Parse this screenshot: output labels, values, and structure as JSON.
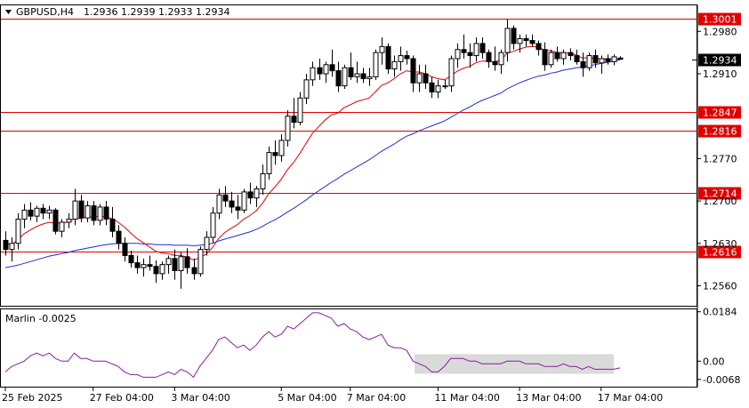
{
  "header": {
    "symbol_timeframe": "GBPUSD,H4",
    "quote": "1.2936 1.2939 1.2933 1.2934"
  },
  "indicator": {
    "label": "Marlin -0.0025"
  },
  "colors": {
    "candle_body_up": "#ffffff",
    "candle_body_down": "#000000",
    "candle_outline": "#000000",
    "level_line": "#e00000",
    "level_box": "#e00000",
    "ma_fast": "#e00000",
    "ma_slow": "#1f2fd0",
    "oscillator": "#8b1aa0",
    "shade": "#d6d6d6",
    "current_price_box": "#000000"
  },
  "chart_data": [
    {
      "type": "candlestick",
      "title": "GBPUSD,H4",
      "ylim": [
        1.2527,
        1.3023
      ],
      "y_ticks": [
        "1.2980",
        "1.2910",
        "1.2770",
        "1.2700",
        "1.2630",
        "1.2560"
      ],
      "x_ticks": [
        "25 Feb 2025",
        "27 Feb 04:00",
        "3 Mar 04:00",
        "5 Mar 04:00",
        "7 Mar 04:00",
        "11 Mar 04:00",
        "13 Mar 04:00",
        "17 Mar 04:00"
      ],
      "levels": [
        "1.3001",
        "1.2847",
        "1.2816",
        "1.2714",
        "1.2616"
      ],
      "current_price": "1.2934",
      "candles": [
        [
          1.2635,
          1.265,
          1.261,
          1.262
        ],
        [
          1.262,
          1.264,
          1.26,
          1.263
        ],
        [
          1.263,
          1.268,
          1.262,
          1.267
        ],
        [
          1.267,
          1.2695,
          1.2655,
          1.2685
        ],
        [
          1.2685,
          1.2698,
          1.2668,
          1.2675
        ],
        [
          1.2675,
          1.2692,
          1.2665,
          1.2688
        ],
        [
          1.2688,
          1.2695,
          1.267,
          1.268
        ],
        [
          1.268,
          1.2692,
          1.267,
          1.2685
        ],
        [
          1.2685,
          1.2688,
          1.2645,
          1.265
        ],
        [
          1.265,
          1.267,
          1.264,
          1.2665
        ],
        [
          1.2665,
          1.268,
          1.2655,
          1.267
        ],
        [
          1.267,
          1.272,
          1.266,
          1.27
        ],
        [
          1.27,
          1.271,
          1.2665,
          1.2672
        ],
        [
          1.2672,
          1.27,
          1.2665,
          1.2692
        ],
        [
          1.2692,
          1.27,
          1.266,
          1.2668
        ],
        [
          1.2668,
          1.2695,
          1.266,
          1.269
        ],
        [
          1.269,
          1.27,
          1.266,
          1.267
        ],
        [
          1.267,
          1.269,
          1.264,
          1.265
        ],
        [
          1.265,
          1.266,
          1.262,
          1.263
        ],
        [
          1.263,
          1.264,
          1.26,
          1.261
        ],
        [
          1.261,
          1.2618,
          1.259,
          1.2598
        ],
        [
          1.2598,
          1.261,
          1.258,
          1.259
        ],
        [
          1.259,
          1.2605,
          1.2575,
          1.2595
        ],
        [
          1.2595,
          1.261,
          1.2585,
          1.2592
        ],
        [
          1.2592,
          1.2602,
          1.2565,
          1.258
        ],
        [
          1.258,
          1.26,
          1.257,
          1.2595
        ],
        [
          1.2595,
          1.261,
          1.258,
          1.2605
        ],
        [
          1.2605,
          1.262,
          1.257,
          1.2585
        ],
        [
          1.2585,
          1.2615,
          1.2555,
          1.2608
        ],
        [
          1.2608,
          1.2622,
          1.258,
          1.259
        ],
        [
          1.259,
          1.2605,
          1.257,
          1.258
        ],
        [
          1.258,
          1.2625,
          1.2575,
          1.262
        ],
        [
          1.262,
          1.265,
          1.261,
          1.264
        ],
        [
          1.264,
          1.269,
          1.263,
          1.268
        ],
        [
          1.268,
          1.272,
          1.267,
          1.271
        ],
        [
          1.271,
          1.2725,
          1.269,
          1.27
        ],
        [
          1.27,
          1.2715,
          1.268,
          1.269
        ],
        [
          1.269,
          1.271,
          1.267,
          1.2685
        ],
        [
          1.2685,
          1.272,
          1.268,
          1.2715
        ],
        [
          1.2715,
          1.273,
          1.2695,
          1.2705
        ],
        [
          1.2705,
          1.2725,
          1.269,
          1.272
        ],
        [
          1.272,
          1.276,
          1.271,
          1.2745
        ],
        [
          1.2745,
          1.279,
          1.2735,
          1.278
        ],
        [
          1.278,
          1.28,
          1.276,
          1.2775
        ],
        [
          1.2775,
          1.281,
          1.2765,
          1.28
        ],
        [
          1.28,
          1.285,
          1.279,
          1.284
        ],
        [
          1.284,
          1.287,
          1.282,
          1.283
        ],
        [
          1.283,
          1.288,
          1.2825,
          1.287
        ],
        [
          1.287,
          1.291,
          1.286,
          1.29
        ],
        [
          1.29,
          1.293,
          1.289,
          1.292
        ],
        [
          1.292,
          1.2935,
          1.29,
          1.291
        ],
        [
          1.291,
          1.293,
          1.2895,
          1.2925
        ],
        [
          1.2925,
          1.295,
          1.2905,
          1.2915
        ],
        [
          1.2915,
          1.293,
          1.288,
          1.289
        ],
        [
          1.289,
          1.2925,
          1.2885,
          1.292
        ],
        [
          1.292,
          1.2945,
          1.29,
          1.2905
        ],
        [
          1.2905,
          1.293,
          1.2895,
          1.291
        ],
        [
          1.291,
          1.292,
          1.2895,
          1.2902
        ],
        [
          1.2902,
          1.292,
          1.289,
          1.2905
        ],
        [
          1.2905,
          1.295,
          1.29,
          1.2945
        ],
        [
          1.2945,
          1.297,
          1.2925,
          1.2955
        ],
        [
          1.2955,
          1.296,
          1.291,
          1.2918
        ],
        [
          1.2918,
          1.294,
          1.2905,
          1.293
        ],
        [
          1.293,
          1.2955,
          1.2915,
          1.294
        ],
        [
          1.294,
          1.2948,
          1.2925,
          1.2935
        ],
        [
          1.2935,
          1.294,
          1.288,
          1.2895
        ],
        [
          1.2895,
          1.2925,
          1.288,
          1.291
        ],
        [
          1.291,
          1.2925,
          1.2885,
          1.2895
        ],
        [
          1.2895,
          1.2905,
          1.287,
          1.288
        ],
        [
          1.288,
          1.29,
          1.287,
          1.289
        ],
        [
          1.289,
          1.29,
          1.2885,
          1.289
        ],
        [
          1.289,
          1.294,
          1.288,
          1.2935
        ],
        [
          1.2935,
          1.296,
          1.292,
          1.295
        ],
        [
          1.295,
          1.2975,
          1.2935,
          1.2945
        ],
        [
          1.2945,
          1.296,
          1.292,
          1.294
        ],
        [
          1.294,
          1.297,
          1.293,
          1.296
        ],
        [
          1.296,
          1.297,
          1.2935,
          1.2945
        ],
        [
          1.2945,
          1.295,
          1.292,
          1.293
        ],
        [
          1.293,
          1.2955,
          1.2915,
          1.2925
        ],
        [
          1.2925,
          1.295,
          1.291,
          1.2945
        ],
        [
          1.2945,
          1.3,
          1.293,
          1.2985
        ],
        [
          1.2985,
          1.299,
          1.295,
          1.296
        ],
        [
          1.296,
          1.2975,
          1.2945,
          1.2968
        ],
        [
          1.2968,
          1.2975,
          1.2955,
          1.2965
        ],
        [
          1.2965,
          1.2975,
          1.2955,
          1.296
        ],
        [
          1.296,
          1.2965,
          1.294,
          1.295
        ],
        [
          1.295,
          1.2962,
          1.2915,
          1.2925
        ],
        [
          1.2925,
          1.295,
          1.292,
          1.2945
        ],
        [
          1.2945,
          1.2955,
          1.293,
          1.2935
        ],
        [
          1.2935,
          1.295,
          1.2925,
          1.2945
        ],
        [
          1.2945,
          1.2952,
          1.2932,
          1.294
        ],
        [
          1.294,
          1.295,
          1.2925,
          1.293
        ],
        [
          1.293,
          1.2945,
          1.2905,
          1.292
        ],
        [
          1.292,
          1.2945,
          1.2915,
          1.294
        ],
        [
          1.294,
          1.295,
          1.292,
          1.2928
        ],
        [
          1.2928,
          1.294,
          1.291,
          1.2935
        ],
        [
          1.2935,
          1.2942,
          1.2925,
          1.293
        ],
        [
          1.293,
          1.2942,
          1.2924,
          1.2938
        ],
        [
          1.2936,
          1.2939,
          1.2933,
          1.2934
        ]
      ],
      "ma_fast": [
        1.263,
        1.2628,
        1.2636,
        1.2646,
        1.2652,
        1.2658,
        1.2662,
        1.2665,
        1.2663,
        1.2664,
        1.2665,
        1.2671,
        1.2671,
        1.2674,
        1.2673,
        1.2675,
        1.2674,
        1.2671,
        1.2665,
        1.2657,
        1.2647,
        1.2638,
        1.2631,
        1.2624,
        1.2617,
        1.2614,
        1.2613,
        1.261,
        1.261,
        1.2607,
        1.2603,
        1.2606,
        1.2612,
        1.2623,
        1.2638,
        1.2648,
        1.2655,
        1.2661,
        1.267,
        1.2676,
        1.2684,
        1.2696,
        1.2712,
        1.2723,
        1.2736,
        1.2752,
        1.2764,
        1.2779,
        1.2796,
        1.2812,
        1.2823,
        1.2834,
        1.2842,
        1.2845,
        1.2854,
        1.2859,
        1.2864,
        1.2867,
        1.287,
        1.288,
        1.2891,
        1.2895,
        1.2902,
        1.291,
        1.2915,
        1.2913,
        1.2913,
        1.291,
        1.2905,
        1.2902,
        1.29,
        1.2906,
        1.2914,
        1.2919,
        1.2922,
        1.2928,
        1.2931,
        1.2931,
        1.293,
        1.2932,
        1.2944,
        1.2947,
        1.2951,
        1.2954,
        1.2955,
        1.2954,
        1.2949,
        1.2948,
        1.2945,
        1.2945,
        1.2944,
        1.2941,
        1.2936,
        1.2937,
        1.2935,
        1.2935,
        1.2934,
        1.2935,
        1.2934
      ],
      "ma_slow": [
        1.259,
        1.2592,
        1.2594,
        1.2597,
        1.26,
        1.2603,
        1.2606,
        1.2609,
        1.2611,
        1.2613,
        1.2615,
        1.2618,
        1.262,
        1.2622,
        1.2624,
        1.2626,
        1.2628,
        1.2629,
        1.263,
        1.263,
        1.263,
        1.263,
        1.2629,
        1.2629,
        1.2628,
        1.2628,
        1.2628,
        1.2627,
        1.2627,
        1.2627,
        1.2626,
        1.2627,
        1.2628,
        1.263,
        1.2634,
        1.2637,
        1.264,
        1.2643,
        1.2646,
        1.2649,
        1.2653,
        1.2658,
        1.2664,
        1.2669,
        1.2675,
        1.2682,
        1.2688,
        1.2695,
        1.2702,
        1.271,
        1.2717,
        1.2724,
        1.2731,
        1.2737,
        1.2744,
        1.275,
        1.2756,
        1.2762,
        1.2768,
        1.2775,
        1.2782,
        1.2788,
        1.2794,
        1.2801,
        1.2807,
        1.2811,
        1.2816,
        1.282,
        1.2824,
        1.2828,
        1.2832,
        1.2838,
        1.2844,
        1.285,
        1.2855,
        1.2861,
        1.2866,
        1.287,
        1.2874,
        1.2878,
        1.2885,
        1.289,
        1.2895,
        1.2899,
        1.2903,
        1.2906,
        1.2908,
        1.2911,
        1.2913,
        1.2916,
        1.2918,
        1.292,
        1.2921,
        1.2923,
        1.2925,
        1.2927,
        1.2929,
        1.2931,
        1.2933
      ]
    },
    {
      "type": "line",
      "title": "Marlin -0.0025",
      "ylim": [
        -0.0095,
        0.0193
      ],
      "y_ticks": [
        "0.0184",
        "0.00",
        "-0.0068"
      ],
      "series": [
        {
          "values": [
            -0.004,
            -0.002,
            -0.001,
            0.0,
            0.002,
            0.003,
            0.002,
            0.003,
            0.001,
            0.0,
            0.0,
            0.003,
            0.001,
            0.001,
            0.0,
            0.0,
            0.0,
            -0.001,
            -0.002,
            -0.004,
            -0.005,
            -0.005,
            -0.006,
            -0.006,
            -0.006,
            -0.005,
            -0.004,
            -0.005,
            -0.003,
            -0.004,
            -0.006,
            -0.002,
            0.001,
            0.004,
            0.008,
            0.009,
            0.007,
            0.005,
            0.006,
            0.004,
            0.006,
            0.009,
            0.011,
            0.009,
            0.01,
            0.013,
            0.012,
            0.014,
            0.016,
            0.018,
            0.018,
            0.017,
            0.016,
            0.013,
            0.014,
            0.012,
            0.011,
            0.009,
            0.008,
            0.009,
            0.01,
            0.006,
            0.005,
            0.005,
            0.004,
            0.0,
            -0.001,
            -0.002,
            -0.004,
            -0.004,
            -0.002,
            0.001,
            0.001,
            0.001,
            0.0,
            0.0,
            -0.001,
            -0.001,
            -0.001,
            -0.001,
            0.0,
            0.0,
            0.0,
            -0.001,
            -0.001,
            -0.001,
            -0.002,
            -0.002,
            -0.002,
            -0.001,
            -0.002,
            -0.002,
            -0.003,
            -0.002,
            -0.003,
            -0.003,
            -0.003,
            -0.003,
            -0.0025
          ]
        }
      ],
      "shaded_range": [
        0.0026,
        -0.0047
      ]
    }
  ]
}
